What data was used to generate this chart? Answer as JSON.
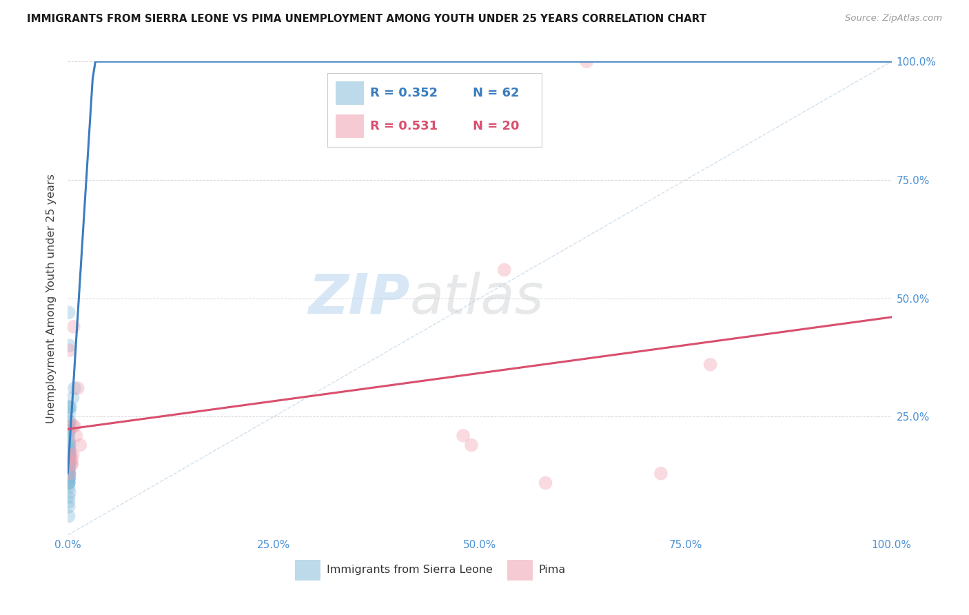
{
  "title": "IMMIGRANTS FROM SIERRA LEONE VS PIMA UNEMPLOYMENT AMONG YOUTH UNDER 25 YEARS CORRELATION CHART",
  "source": "Source: ZipAtlas.com",
  "ylabel": "Unemployment Among Youth under 25 years",
  "legend_labels": [
    "Immigrants from Sierra Leone",
    "Pima"
  ],
  "legend_r_blue": "R = 0.352",
  "legend_n_blue": "N = 62",
  "legend_r_pink": "R = 0.531",
  "legend_n_pink": "N = 20",
  "blue_color": "#85bcd8",
  "pink_color": "#f0a0b0",
  "reg_blue_color": "#3a7dbf",
  "reg_pink_color": "#d94f6e",
  "diag_color": "#aac8e0",
  "background": "#ffffff",
  "grid_color": "#d5d5d5",
  "title_color": "#1a1a1a",
  "source_color": "#999999",
  "axis_label_color": "#444444",
  "tick_color": "#4a90d4",
  "blue_x": [
    0.001,
    0.001,
    0.002,
    0.001,
    0.001,
    0.002,
    0.002,
    0.002,
    0.001,
    0.001,
    0.002,
    0.001,
    0.001,
    0.001,
    0.002,
    0.001,
    0.001,
    0.001,
    0.002,
    0.001,
    0.001,
    0.002,
    0.001,
    0.001,
    0.001,
    0.002,
    0.001,
    0.001,
    0.002,
    0.001,
    0.001,
    0.001,
    0.002,
    0.001,
    0.001,
    0.002,
    0.001,
    0.001,
    0.002,
    0.001,
    0.001,
    0.001,
    0.001,
    0.002,
    0.001,
    0.001,
    0.002,
    0.001,
    0.001,
    0.001,
    0.002,
    0.001,
    0.001,
    0.002,
    0.008,
    0.006,
    0.001,
    0.002,
    0.001,
    0.001,
    0.003,
    0.001
  ],
  "blue_y": [
    0.14,
    0.16,
    0.22,
    0.19,
    0.47,
    0.4,
    0.24,
    0.27,
    0.12,
    0.14,
    0.15,
    0.17,
    0.12,
    0.2,
    0.26,
    0.22,
    0.13,
    0.16,
    0.18,
    0.11,
    0.14,
    0.17,
    0.23,
    0.12,
    0.15,
    0.19,
    0.13,
    0.11,
    0.16,
    0.21,
    0.18,
    0.14,
    0.12,
    0.15,
    0.2,
    0.24,
    0.13,
    0.11,
    0.17,
    0.14,
    0.27,
    0.15,
    0.12,
    0.19,
    0.14,
    0.22,
    0.13,
    0.18,
    0.11,
    0.15,
    0.17,
    0.13,
    0.1,
    0.23,
    0.31,
    0.29,
    0.07,
    0.09,
    0.06,
    0.04,
    0.27,
    0.08
  ],
  "pink_x": [
    0.002,
    0.006,
    0.012,
    0.008,
    0.01,
    0.015,
    0.006,
    0.004,
    0.58,
    0.72,
    0.78,
    0.48,
    0.003,
    0.005,
    0.007,
    0.49,
    0.005,
    0.002,
    0.63,
    0.53
  ],
  "pink_y": [
    0.39,
    0.23,
    0.31,
    0.23,
    0.21,
    0.19,
    0.17,
    0.15,
    0.11,
    0.13,
    0.36,
    0.21,
    0.17,
    0.15,
    0.44,
    0.19,
    0.16,
    0.13,
    1.0,
    0.56
  ],
  "xlim": [
    0.0,
    1.0
  ],
  "ylim": [
    0.0,
    1.0
  ],
  "xticks": [
    0.0,
    0.25,
    0.5,
    0.75,
    1.0
  ],
  "yticks": [
    0.0,
    0.25,
    0.5,
    0.75,
    1.0
  ],
  "xticklabels": [
    "0.0%",
    "25.0%",
    "50.0%",
    "75.0%",
    "100.0%"
  ],
  "right_yticklabels": [
    "",
    "25.0%",
    "50.0%",
    "75.0%",
    "100.0%"
  ],
  "marker_size": 200,
  "marker_alpha": 0.38,
  "reg_lw": 2.2,
  "diag_lw": 1.0,
  "diag_alpha": 0.55,
  "watermark_zip": "ZIP",
  "watermark_atlas": "atlas",
  "watermark_alpha": 0.1
}
